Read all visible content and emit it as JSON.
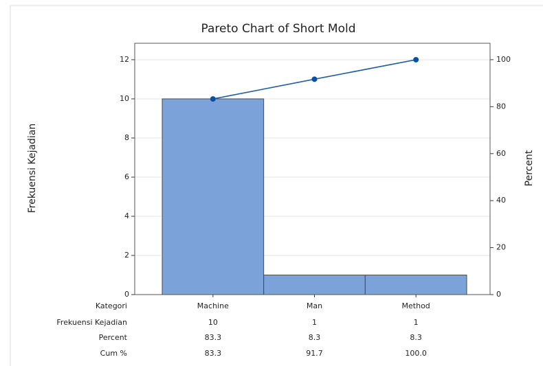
{
  "chart_data": {
    "type": "pareto",
    "title": "Pareto Chart of Short Mold",
    "ylabel": "Frekuensi Kejadian",
    "y2label": "Percent",
    "category_label": "Kategori",
    "categories": [
      "Machine",
      "Man",
      "Method"
    ],
    "series": [
      {
        "name": "Frekuensi Kejadian",
        "color": "#7ba3d9",
        "values": [
          10,
          1,
          1
        ]
      },
      {
        "name": "Percent",
        "values": [
          83.3,
          8.3,
          8.3
        ]
      },
      {
        "name": "Cum %",
        "color": "#1f5fa8",
        "axis": "y2",
        "values": [
          83.3,
          91.7,
          100
        ],
        "value_labels": [
          "83.3",
          "91.7",
          "100.0"
        ]
      }
    ],
    "ylim": [
      0,
      12.84
    ],
    "yticks": [
      0,
      2,
      4,
      6,
      8,
      10,
      12
    ],
    "y2lim": [
      0,
      107
    ],
    "y2ticks": [
      0,
      20,
      40,
      60,
      80,
      100
    ],
    "grid": true
  }
}
